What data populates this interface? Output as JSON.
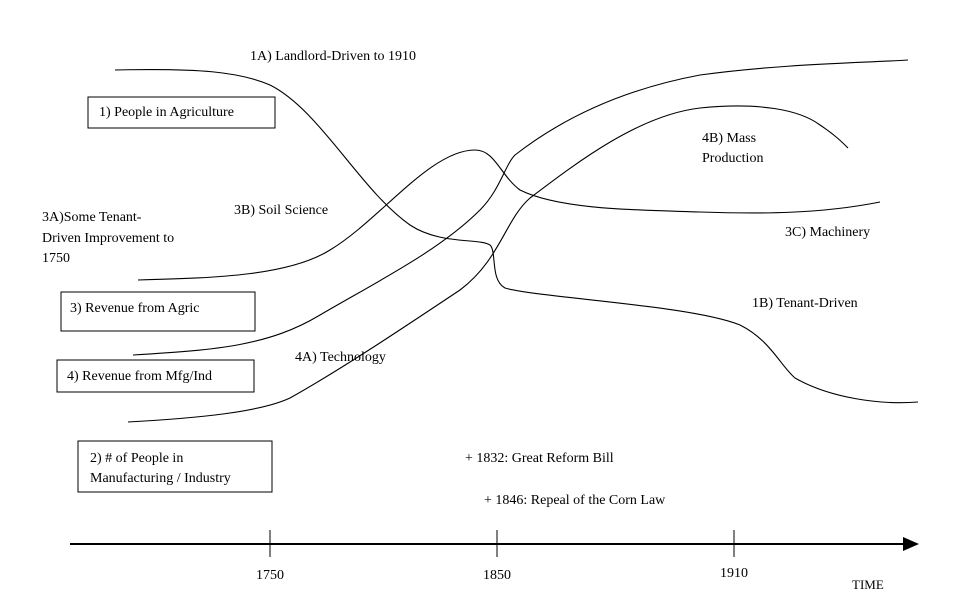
{
  "boxes": [
    {
      "lines": [
        "1) People in Agriculture"
      ]
    },
    {
      "lines": [
        "3) Revenue from Agric"
      ]
    },
    {
      "lines": [
        "4) Revenue from Mfg/Ind"
      ]
    },
    {
      "lines": [
        "2) # of People in",
        "Manufacturing / Industry"
      ]
    }
  ],
  "labels": [
    {
      "lines": [
        "1A) Landlord-Driven to 1910"
      ]
    },
    {
      "lines": [
        "1B) Tenant-Driven"
      ]
    },
    {
      "lines": [
        "3A)Some Tenant-",
        "Driven Improvement to",
        "1750"
      ]
    },
    {
      "lines": [
        "3B) Soil Science"
      ]
    },
    {
      "lines": [
        "3C) Machinery"
      ]
    },
    {
      "lines": [
        "4A) Technology"
      ]
    },
    {
      "lines": [
        "4B) Mass",
        "Production"
      ]
    }
  ],
  "events": [
    "+ 1832: Great Reform Bill",
    "+ 1846: Repeal of the Corn Law"
  ],
  "axis": {
    "ticks": [
      "1750",
      "1850",
      "1910"
    ],
    "label": "TIME"
  }
}
